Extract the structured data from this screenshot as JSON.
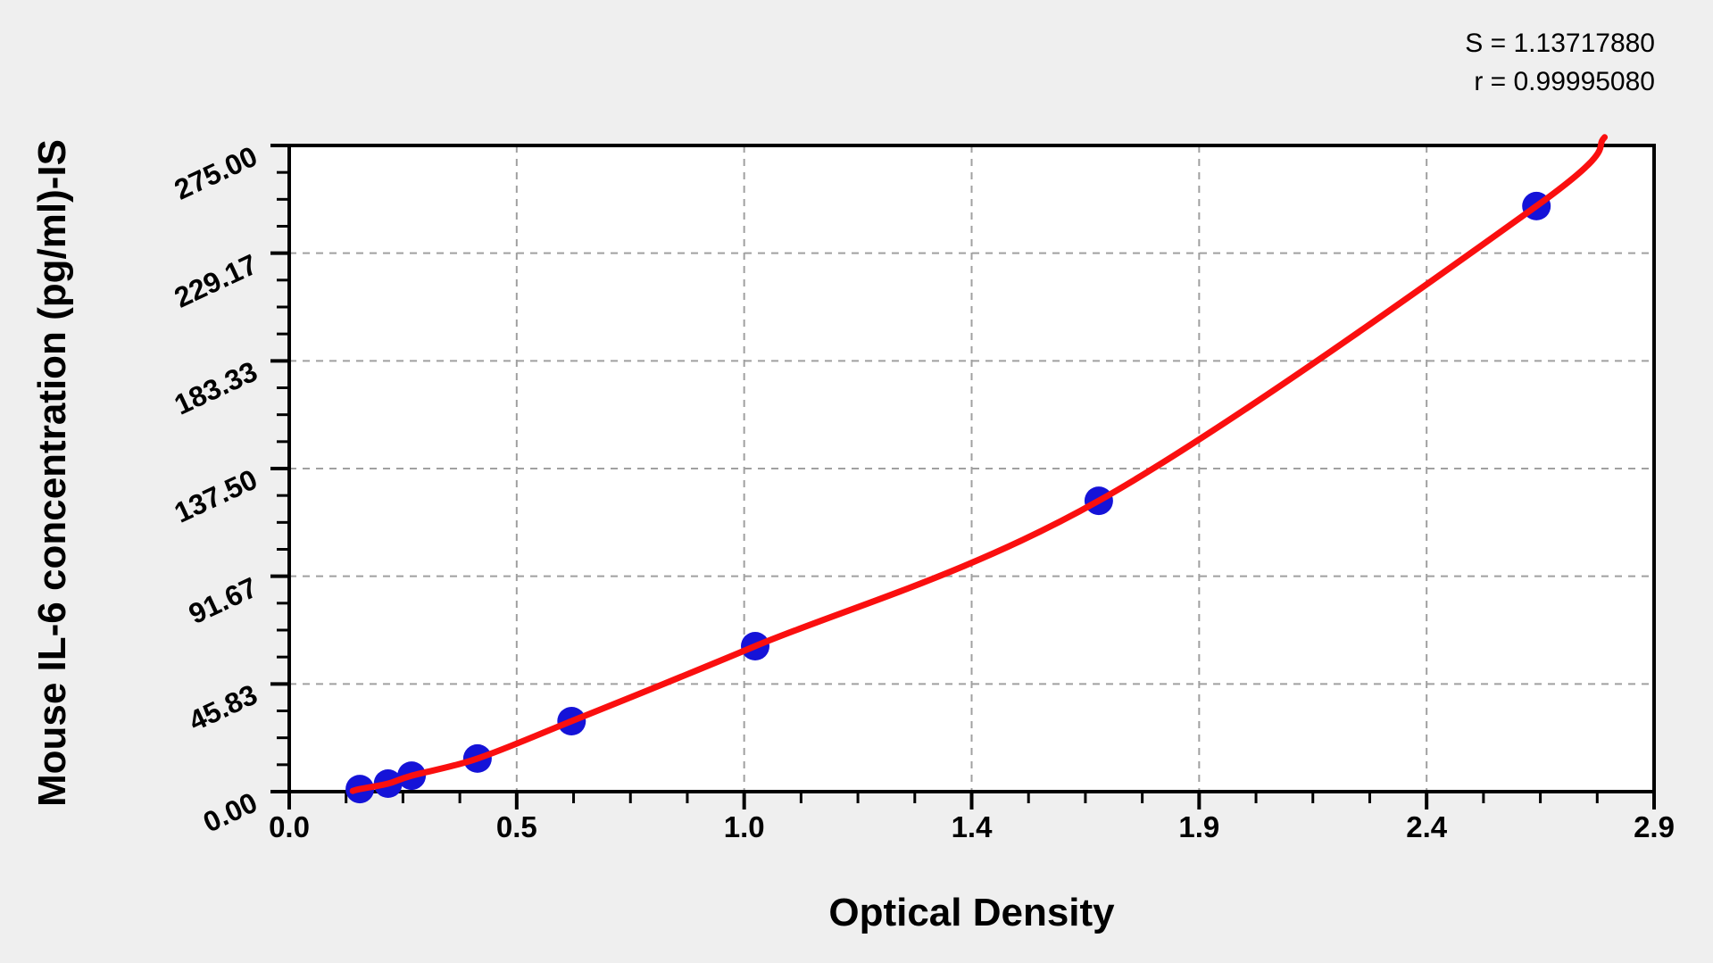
{
  "annotation": {
    "s_label": "S = 1.13717880",
    "r_label": "r = 0.99995080"
  },
  "chart_data": {
    "type": "scatter",
    "title": "",
    "xlabel": "Optical Density",
    "ylabel": "Mouse IL-6 concentration (pg/ml)-IS",
    "xlim": [
      0,
      2.9
    ],
    "ylim": [
      0,
      275
    ],
    "x_tick_labels": [
      "0.0",
      "0.5",
      "1.0",
      "1.4",
      "1.9",
      "2.4",
      "2.9"
    ],
    "y_tick_labels": [
      "0.00",
      "45.83",
      "91.67",
      "137.50",
      "183.33",
      "229.17",
      "275.00"
    ],
    "minor_divisions_per_major": 4,
    "grid": {
      "style": "dashed",
      "at": "major-ticks",
      "both_axes": true
    },
    "legend": null,
    "fit_stats": {
      "S": 1.1371788,
      "r": 0.9999508
    },
    "series": [
      {
        "name": "standard-points",
        "type": "scatter",
        "marker": "circle",
        "points": [
          {
            "x": 0.15,
            "y": 1.1
          },
          {
            "x": 0.21,
            "y": 3.4
          },
          {
            "x": 0.26,
            "y": 6.8
          },
          {
            "x": 0.4,
            "y": 14.1
          },
          {
            "x": 0.6,
            "y": 30.0
          },
          {
            "x": 0.99,
            "y": 61.9
          },
          {
            "x": 1.72,
            "y": 123.8
          },
          {
            "x": 2.65,
            "y": 249.2
          }
        ]
      },
      {
        "name": "fitted-curve",
        "type": "line",
        "points": [
          {
            "x": 0.135,
            "y": 0.3
          },
          {
            "x": 0.15,
            "y": 1.1
          },
          {
            "x": 0.21,
            "y": 3.4
          },
          {
            "x": 0.26,
            "y": 6.8
          },
          {
            "x": 0.4,
            "y": 14.1
          },
          {
            "x": 0.6,
            "y": 30.0
          },
          {
            "x": 0.99,
            "y": 61.9
          },
          {
            "x": 1.72,
            "y": 123.8
          },
          {
            "x": 2.65,
            "y": 249.2
          },
          {
            "x": 2.795,
            "y": 278.5
          }
        ]
      }
    ],
    "colors": {
      "marker": "#1513d8",
      "curve": "#fa0f0f",
      "grid": "#a0a0a0",
      "frame": "#000000",
      "plot_bg": "#ffffff",
      "page_bg": "#efefef",
      "text": "#000000"
    }
  }
}
